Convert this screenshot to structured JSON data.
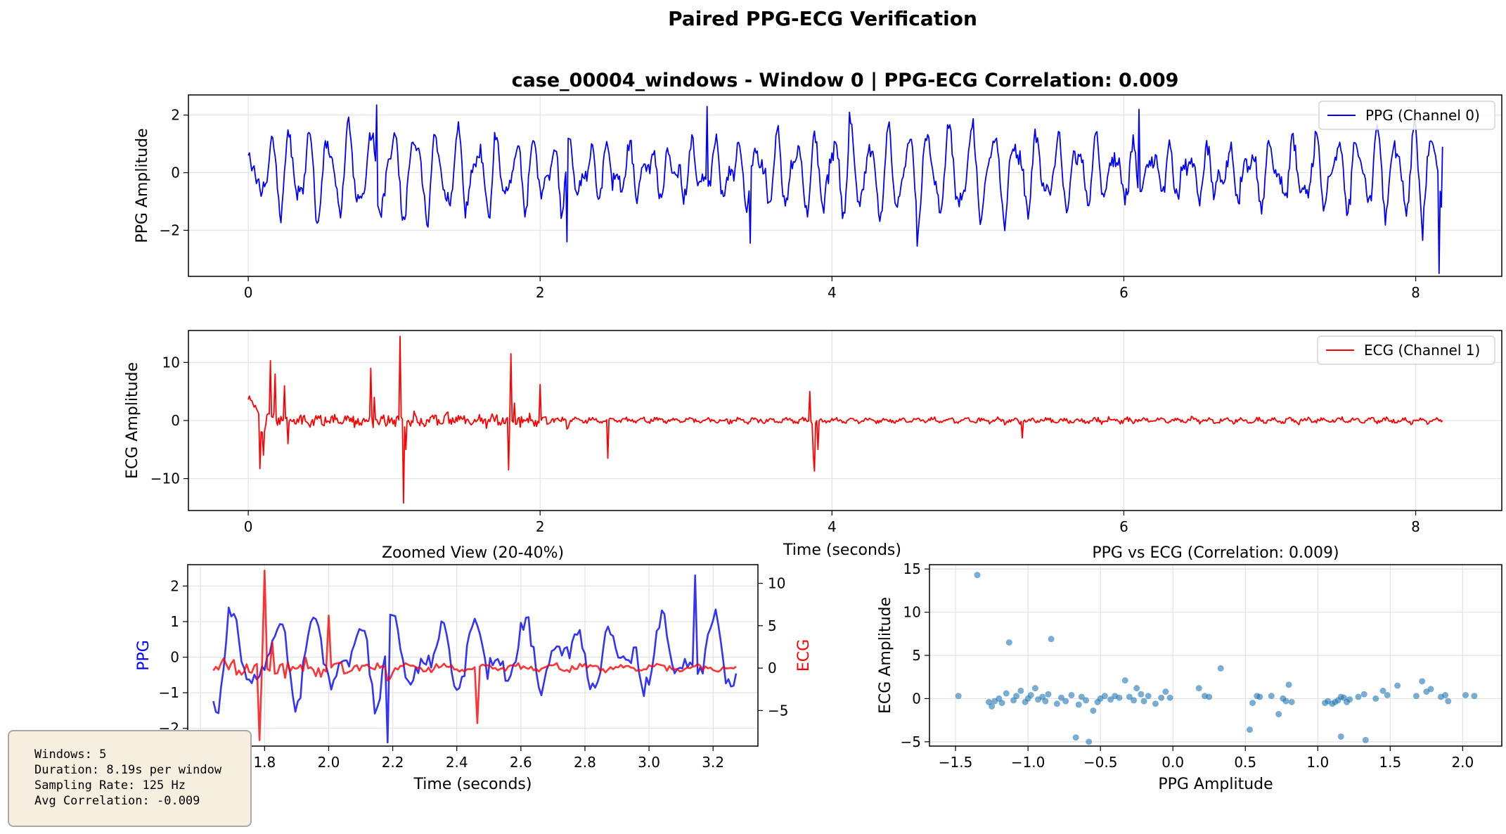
{
  "figure_title": "Paired PPG-ECG Verification",
  "colors": {
    "ppg": "#0000ff",
    "ecg": "#ff0000",
    "scatter": "#1f77b4",
    "info_bg": "#f6efdf"
  },
  "info_box": {
    "line1": "Windows: 5",
    "line2": "Duration: 8.19s per window",
    "line3": "Sampling Rate: 125 Hz",
    "line4": "Avg Correlation: -0.009"
  },
  "chart_data": [
    {
      "id": "ppg_full",
      "type": "line",
      "title": "case_00004_windows - Window 0 | PPG-ECG Correlation: 0.009",
      "xlabel": "",
      "ylabel": "PPG Amplitude",
      "xlim": [
        -0.41,
        8.59
      ],
      "ylim": [
        -3.6,
        2.7
      ],
      "xticks": [
        0,
        2,
        4,
        6,
        8
      ],
      "yticks": [
        -2,
        0,
        2
      ],
      "grid": true,
      "legend": {
        "position": "top-right",
        "label": "PPG (Channel 0)"
      },
      "series": [
        {
          "name": "PPG (Channel 0)",
          "color": "#0000ff",
          "x_start": 0,
          "x_end": 8.19,
          "approx_max": 2.35,
          "approx_min": -3.5,
          "description_points": [
            [
              0,
              0.4
            ],
            [
              0.02,
              0.6
            ],
            [
              0.05,
              0.0
            ],
            [
              0.1,
              -0.8
            ],
            [
              0.9,
              2.35
            ],
            [
              3.15,
              2.3
            ],
            [
              4.6,
              -2.55
            ],
            [
              8.1,
              -2.3
            ],
            [
              8.15,
              -3.5
            ],
            [
              8.19,
              0.9
            ]
          ]
        }
      ]
    },
    {
      "id": "ecg_full",
      "type": "line",
      "title": "",
      "xlabel": "Time (seconds)",
      "ylabel": "ECG Amplitude",
      "xlim": [
        -0.41,
        8.59
      ],
      "ylim": [
        -15.5,
        15.5
      ],
      "xticks": [
        0,
        2,
        4,
        6,
        8
      ],
      "yticks": [
        -10,
        0,
        10
      ],
      "grid": true,
      "legend": {
        "position": "top-right",
        "label": "ECG (Channel 1)"
      },
      "series": [
        {
          "name": "ECG (Channel 1)",
          "color": "#ff0000",
          "x_start": 0,
          "x_end": 8.19,
          "description_points": [
            [
              0,
              3.5
            ],
            [
              0.15,
              10.3
            ],
            [
              0.08,
              -8.3
            ],
            [
              0.85,
              9.0
            ],
            [
              1.05,
              14.5
            ],
            [
              1.06,
              -14.2
            ],
            [
              1.8,
              11.5
            ],
            [
              1.78,
              -8.5
            ],
            [
              3.85,
              5.0
            ],
            [
              3.9,
              -8.7
            ],
            [
              5.3,
              -3.0
            ],
            [
              8.19,
              0
            ]
          ]
        }
      ]
    },
    {
      "id": "zoomed",
      "type": "line",
      "title": "Zoomed View (20-40%)",
      "xlabel": "Time (seconds)",
      "ylabel": "PPG",
      "y2label": "ECG",
      "xlim": [
        1.56,
        3.34
      ],
      "ylim": [
        -2.5,
        2.6
      ],
      "y2lim": [
        -9.2,
        12.2
      ],
      "xticks": [
        1.6,
        1.8,
        2.0,
        2.2,
        2.4,
        2.6,
        2.8,
        3.0,
        3.2
      ],
      "yticks": [
        -2,
        -1,
        0,
        1,
        2
      ],
      "y2ticks": [
        -5,
        0,
        5,
        10
      ],
      "grid": true,
      "series": [
        {
          "name": "PPG",
          "color": "#0000ff",
          "x_start": 1.64,
          "x_end": 3.27,
          "approx_max": 2.35,
          "approx_min": -2.4
        },
        {
          "name": "ECG",
          "color": "#ff0000",
          "x_start": 1.64,
          "x_end": 3.27,
          "approx_max": 11.5,
          "approx_min": -8.5
        }
      ]
    },
    {
      "id": "scatter",
      "type": "scatter",
      "title": "PPG vs ECG (Correlation: 0.009)",
      "xlabel": "PPG Amplitude",
      "ylabel": "ECG Amplitude",
      "xlim": [
        -1.68,
        2.27
      ],
      "ylim": [
        -5.5,
        15.5
      ],
      "xticks": [
        -1.5,
        -1.0,
        -0.5,
        0.0,
        0.5,
        1.0,
        1.5,
        2.0
      ],
      "yticks": [
        -5,
        0,
        5,
        10,
        15
      ],
      "grid": true,
      "points": [
        [
          -1.48,
          0.3
        ],
        [
          -1.35,
          14.3
        ],
        [
          -1.27,
          -0.4
        ],
        [
          -1.25,
          -0.9
        ],
        [
          -1.23,
          -0.3
        ],
        [
          -1.2,
          0.0
        ],
        [
          -1.18,
          -0.5
        ],
        [
          -1.15,
          0.6
        ],
        [
          -1.13,
          6.5
        ],
        [
          -1.1,
          -0.2
        ],
        [
          -1.08,
          0.3
        ],
        [
          -1.05,
          0.9
        ],
        [
          -1.02,
          -0.4
        ],
        [
          -1.0,
          0.0
        ],
        [
          -0.98,
          0.4
        ],
        [
          -0.95,
          1.2
        ],
        [
          -0.93,
          -0.1
        ],
        [
          -0.9,
          0.2
        ],
        [
          -0.88,
          -0.3
        ],
        [
          -0.86,
          0.5
        ],
        [
          -0.84,
          6.9
        ],
        [
          -0.8,
          -0.6
        ],
        [
          -0.77,
          0.1
        ],
        [
          -0.74,
          -0.3
        ],
        [
          -0.7,
          0.4
        ],
        [
          -0.67,
          -4.5
        ],
        [
          -0.65,
          -0.7
        ],
        [
          -0.63,
          0.2
        ],
        [
          -0.6,
          -0.2
        ],
        [
          -0.58,
          -5.0
        ],
        [
          -0.55,
          -1.4
        ],
        [
          -0.52,
          -0.4
        ],
        [
          -0.5,
          0.0
        ],
        [
          -0.47,
          0.3
        ],
        [
          -0.43,
          -0.1
        ],
        [
          -0.4,
          0.3
        ],
        [
          -0.37,
          0.1
        ],
        [
          -0.33,
          2.1
        ],
        [
          -0.3,
          0.2
        ],
        [
          -0.27,
          -0.2
        ],
        [
          -0.25,
          1.2
        ],
        [
          -0.22,
          0.5
        ],
        [
          -0.2,
          -0.3
        ],
        [
          -0.17,
          0.3
        ],
        [
          -0.12,
          -0.6
        ],
        [
          -0.08,
          0.1
        ],
        [
          -0.05,
          0.8
        ],
        [
          -0.02,
          0.1
        ],
        [
          0.18,
          1.2
        ],
        [
          0.22,
          0.3
        ],
        [
          0.25,
          0.2
        ],
        [
          0.33,
          3.5
        ],
        [
          0.53,
          -3.6
        ],
        [
          0.55,
          -0.5
        ],
        [
          0.58,
          0.3
        ],
        [
          0.6,
          0.2
        ],
        [
          0.68,
          0.3
        ],
        [
          0.73,
          -1.8
        ],
        [
          0.76,
          0.0
        ],
        [
          0.78,
          -0.3
        ],
        [
          0.8,
          1.6
        ],
        [
          0.82,
          -0.4
        ],
        [
          1.05,
          -0.5
        ],
        [
          1.07,
          -0.3
        ],
        [
          1.1,
          -0.6
        ],
        [
          1.12,
          -0.4
        ],
        [
          1.14,
          -0.2
        ],
        [
          1.16,
          0.2
        ],
        [
          1.16,
          -4.4
        ],
        [
          1.18,
          0.1
        ],
        [
          1.2,
          -0.4
        ],
        [
          1.22,
          -0.1
        ],
        [
          1.28,
          0.2
        ],
        [
          1.32,
          0.5
        ],
        [
          1.33,
          -4.8
        ],
        [
          1.4,
          0.0
        ],
        [
          1.45,
          0.9
        ],
        [
          1.48,
          0.4
        ],
        [
          1.55,
          1.5
        ],
        [
          1.68,
          0.3
        ],
        [
          1.72,
          2.0
        ],
        [
          1.75,
          0.8
        ],
        [
          1.78,
          1.1
        ],
        [
          1.85,
          0.2
        ],
        [
          1.88,
          0.4
        ],
        [
          1.9,
          -0.3
        ],
        [
          2.02,
          0.4
        ],
        [
          2.08,
          0.3
        ]
      ]
    }
  ]
}
